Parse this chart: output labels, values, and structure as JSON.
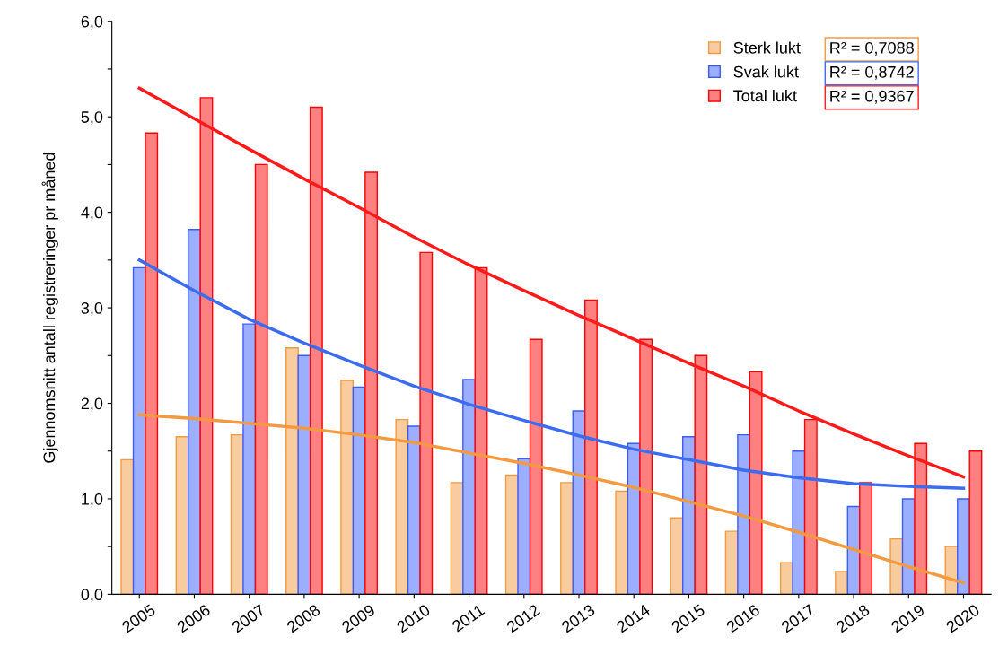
{
  "chart_data": {
    "type": "bar",
    "ylabel": "Gjennomsnitt antall registreringer pr måned",
    "categories": [
      "2005",
      "2006",
      "2007",
      "2008",
      "2009",
      "2010",
      "2011",
      "2012",
      "2013",
      "2014",
      "2015",
      "2016",
      "2017",
      "2018",
      "2019",
      "2020"
    ],
    "series": [
      {
        "name": "Sterk lukt",
        "color": "#f39a40",
        "values": [
          1.41,
          1.65,
          1.67,
          2.58,
          2.24,
          1.83,
          1.17,
          1.25,
          1.17,
          1.08,
          0.8,
          0.66,
          0.33,
          0.24,
          0.58,
          0.5
        ]
      },
      {
        "name": "Svak lukt",
        "color": "#3a5cff",
        "values": [
          3.42,
          3.82,
          2.83,
          2.5,
          2.17,
          1.76,
          2.25,
          1.42,
          1.92,
          1.58,
          1.65,
          1.67,
          1.5,
          0.92,
          1.0,
          1.0
        ]
      },
      {
        "name": "Total lukt",
        "color": "#ff0000",
        "values": [
          4.83,
          5.2,
          4.5,
          5.1,
          4.42,
          3.58,
          3.42,
          2.67,
          3.08,
          2.67,
          2.5,
          2.33,
          1.83,
          1.17,
          1.58,
          1.5
        ]
      },
      {
        "type": "line",
        "color": "#f39a40",
        "values": [
          1.88,
          1.84,
          1.79,
          1.74,
          1.67,
          1.59,
          1.48,
          1.37,
          1.25,
          1.12,
          0.97,
          0.82,
          0.65,
          0.47,
          0.29,
          0.12
        ]
      },
      {
        "type": "line",
        "color": "#3b6cf0",
        "values": [
          3.5,
          3.18,
          2.88,
          2.63,
          2.4,
          2.18,
          1.99,
          1.82,
          1.66,
          1.52,
          1.41,
          1.3,
          1.22,
          1.16,
          1.13,
          1.11
        ]
      },
      {
        "type": "line",
        "color": "#ff1a1a",
        "values": [
          5.3,
          4.98,
          4.66,
          4.35,
          4.05,
          3.74,
          3.45,
          3.18,
          2.92,
          2.67,
          2.42,
          2.18,
          1.92,
          1.68,
          1.45,
          1.23
        ]
      }
    ],
    "annotations": [
      "R² = 0,7088",
      "R² = 0,8742",
      "R² = 0,9367"
    ],
    "ylim": [
      0,
      6
    ],
    "yticks": [
      {
        "value": 0,
        "label": "0,0"
      },
      {
        "value": 0.5,
        "label": null
      },
      {
        "value": 1,
        "label": "1,0"
      },
      {
        "value": 1.5,
        "label": null
      },
      {
        "value": 2,
        "label": "2,0"
      },
      {
        "value": 2.5,
        "label": null
      },
      {
        "value": 3,
        "label": "3,0"
      },
      {
        "value": 3.5,
        "label": null
      },
      {
        "value": 4,
        "label": "4,0"
      },
      {
        "value": 4.5,
        "label": null
      },
      {
        "value": 5,
        "label": "5,0"
      },
      {
        "value": 5.5,
        "label": null
      },
      {
        "value": 6,
        "label": "6,0"
      }
    ],
    "legend": "top right"
  }
}
